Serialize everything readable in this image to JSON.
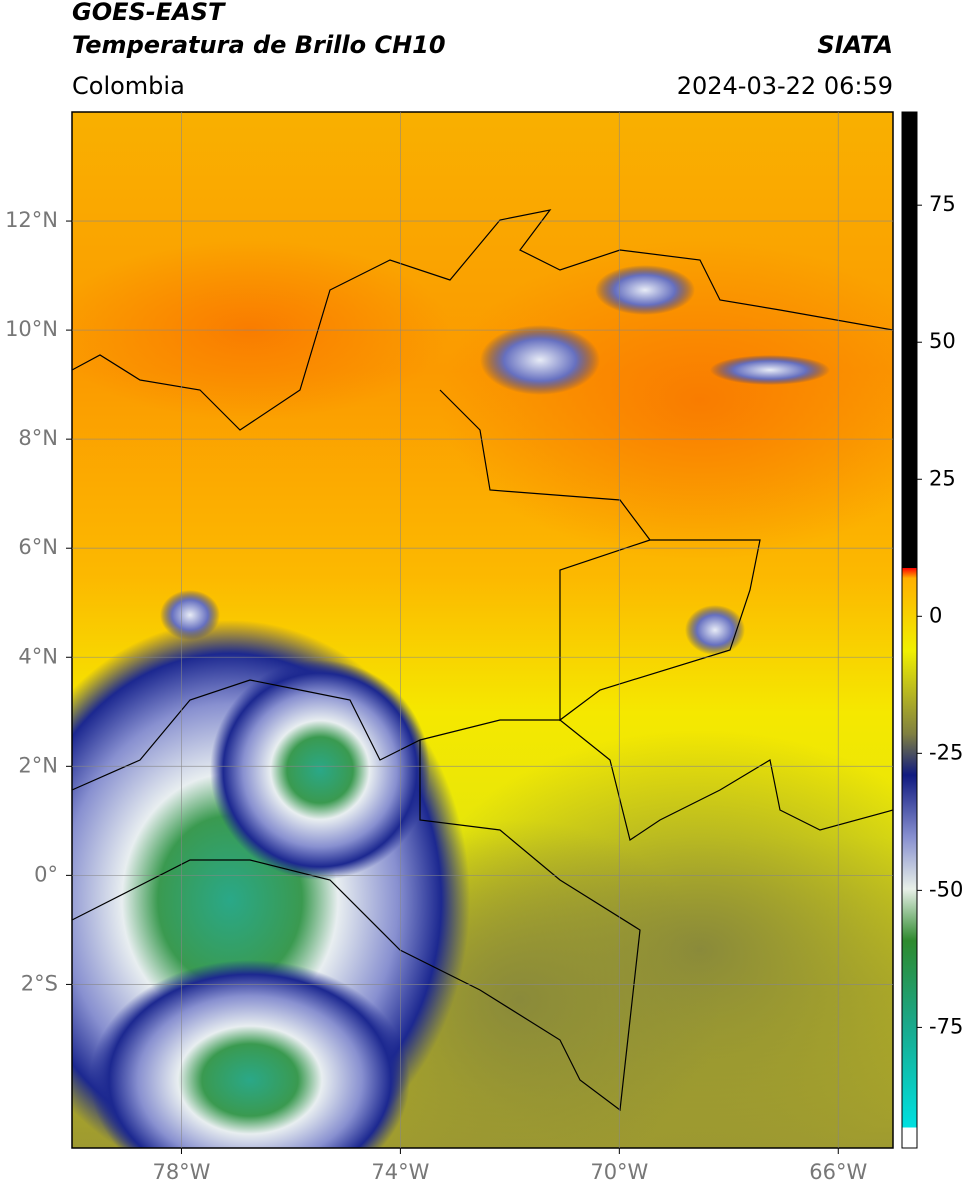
{
  "title": "GOES-EAST",
  "subtitle": "Temperatura de Brillo CH10",
  "region": "Colombia",
  "source": "SIATA",
  "timestamp": "2024-03-22 06:59",
  "map": {
    "lonlim": [
      -80,
      -65
    ],
    "latlim": [
      -5,
      14
    ],
    "lonticks": [
      {
        "value": -78,
        "label": "78°W"
      },
      {
        "value": -74,
        "label": "74°W"
      },
      {
        "value": -70,
        "label": "70°W"
      },
      {
        "value": -66,
        "label": "66°W"
      }
    ],
    "latticks": [
      {
        "value": 12,
        "label": "12°N"
      },
      {
        "value": 10,
        "label": "10°N"
      },
      {
        "value": 8,
        "label": "8°N"
      },
      {
        "value": 6,
        "label": "6°N"
      },
      {
        "value": 4,
        "label": "4°N"
      },
      {
        "value": 2,
        "label": "2°N"
      },
      {
        "value": 0,
        "label": "0°"
      },
      {
        "value": -2,
        "label": "2°S"
      }
    ],
    "grid": true
  },
  "colorbar": {
    "lim": [
      -97,
      92
    ],
    "ticks": [
      75,
      50,
      25,
      0,
      -25,
      -50,
      -75
    ]
  }
}
